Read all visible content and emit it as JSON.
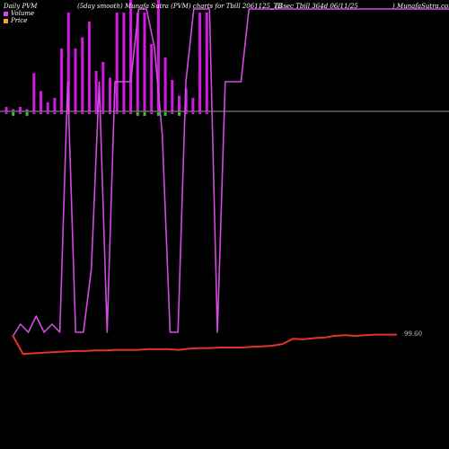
{
  "header": {
    "left": "Daily PVM",
    "center": "(5day smooth) Munafa Sutra (PVM) charts for Tbill 2061125_TB",
    "right_date": "(Gsec Tbill 364d 06/11/25",
    "right_site": ") MunafaSutra.com"
  },
  "legend": [
    {
      "label": "Volume",
      "color": "#e040fb"
    },
    {
      "label": "Price",
      "color": "#f5a623"
    }
  ],
  "colors": {
    "background": "#000000",
    "volume_bar": "#d11be0",
    "pvm_line": "#d24ce0",
    "price_line": "#e8312a",
    "zero_line": "#9a9a9a",
    "positive_tick": "#c81cd6",
    "negative_tick": "#26c72a"
  },
  "chart_data": {
    "type": "bar",
    "title": "",
    "price_label": "99.60",
    "x": [
      0,
      1,
      2,
      3,
      4,
      5,
      6,
      7,
      8,
      9,
      10,
      11,
      12,
      13,
      14,
      15,
      16,
      17,
      18,
      19,
      20,
      21,
      22,
      23,
      24,
      25,
      26,
      27,
      28,
      29,
      30,
      31,
      32,
      33,
      34,
      35,
      36,
      37,
      38,
      39,
      40,
      41,
      42,
      43,
      44,
      45,
      46,
      47,
      48,
      49,
      50,
      51,
      52,
      53,
      54,
      55,
      56,
      57
    ],
    "volume": [
      1,
      0.5,
      1,
      0.5,
      8.5,
      4.5,
      2,
      3,
      14,
      22,
      14,
      16.5,
      20,
      9,
      11,
      7.5,
      22,
      22,
      25,
      22,
      22,
      15,
      25,
      12,
      7,
      3.5,
      5,
      3,
      22,
      22,
      0,
      0,
      0,
      0,
      0,
      0,
      0,
      0,
      0,
      0,
      0,
      0,
      0,
      0,
      0,
      0,
      0,
      0,
      0,
      0,
      0,
      0,
      0,
      0,
      0,
      0,
      0,
      0
    ],
    "volume_sign": [
      1,
      -1,
      1,
      -1,
      1,
      1,
      1,
      1,
      1,
      1,
      1,
      1,
      1,
      1,
      1,
      1,
      1,
      1,
      1,
      -1,
      -1,
      1,
      -1,
      -1,
      1,
      -1,
      1,
      1,
      1,
      1,
      0,
      0,
      0,
      0,
      0,
      0,
      0,
      0,
      0,
      0,
      0,
      0,
      0,
      0,
      0,
      0,
      0,
      0,
      0,
      0,
      0,
      0,
      0,
      0,
      0,
      0,
      0,
      0
    ],
    "pvm_y": [
      375,
      361,
      370,
      352,
      370,
      361,
      370,
      91,
      370,
      370,
      300,
      91,
      370,
      91,
      91,
      91,
      10,
      10,
      52,
      150,
      370,
      370,
      91,
      10,
      10,
      10,
      370,
      91,
      91,
      91,
      10,
      10,
      10,
      10,
      10,
      10,
      10,
      10,
      10,
      10,
      10,
      10,
      10,
      10,
      10,
      10,
      10,
      10,
      10,
      10,
      10,
      10,
      10,
      10,
      10,
      10,
      10,
      10
    ],
    "price": [
      99.598,
      99.566,
      99.567,
      99.568,
      99.569,
      99.57,
      99.571,
      99.571,
      99.572,
      99.572,
      99.573,
      99.573,
      99.573,
      99.574,
      99.574,
      99.574,
      99.573,
      99.575,
      99.576,
      99.576,
      99.577,
      99.577,
      99.577,
      99.578,
      99.579,
      99.58,
      99.583,
      99.592,
      99.591,
      99.593,
      99.594,
      99.597,
      99.598,
      99.597,
      99.598,
      99.599,
      99.599,
      99.599
    ]
  }
}
